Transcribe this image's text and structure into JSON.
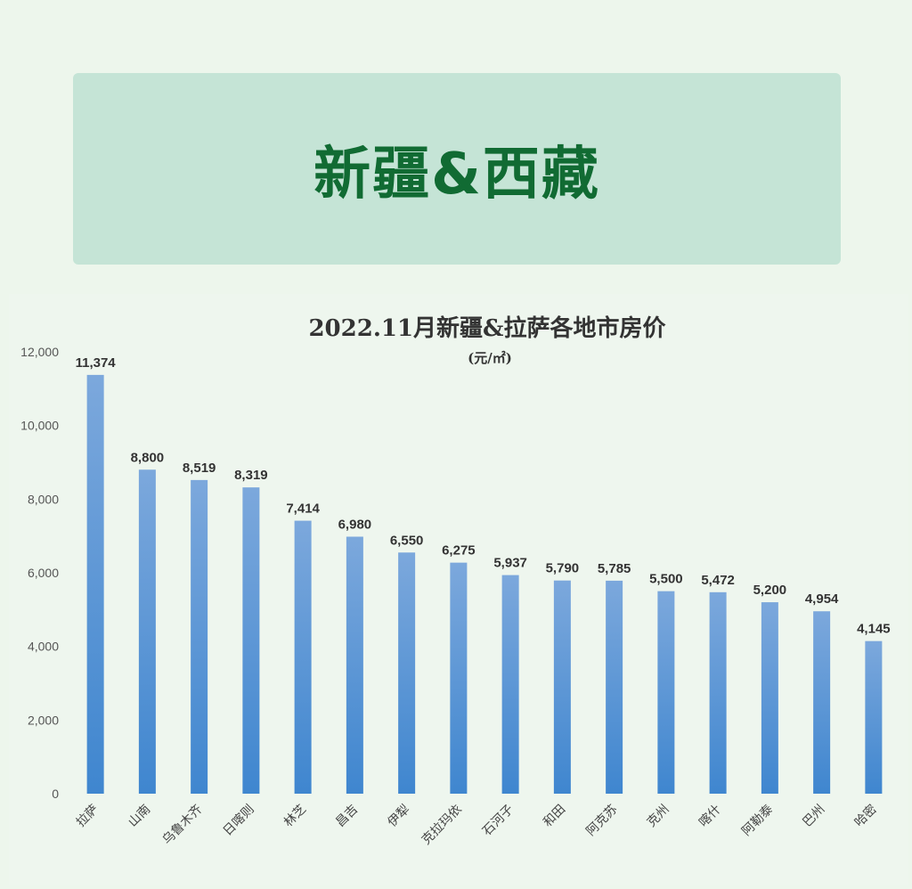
{
  "banner": {
    "title": "新疆&西藏"
  },
  "colors": {
    "page_bg": "#edf6ec",
    "banner_bg": "#c5e4d6",
    "banner_text": "#116b33",
    "bar_top": "#7ca8dc",
    "bar_bottom": "#3f86cf"
  },
  "chart_data": {
    "type": "bar",
    "title": "2022.11月新疆&拉萨各地市房价",
    "subtitle": "(元/㎡)",
    "categories": [
      "拉萨",
      "山南",
      "乌鲁木齐",
      "日喀则",
      "林芝",
      "昌吉",
      "伊犁",
      "克拉玛依",
      "石河子",
      "和田",
      "阿克苏",
      "克州",
      "喀什",
      "阿勒泰",
      "巴州",
      "哈密"
    ],
    "values": [
      11374,
      8800,
      8519,
      8319,
      7414,
      6980,
      6550,
      6275,
      5937,
      5790,
      5785,
      5500,
      5472,
      5200,
      4954,
      4145
    ],
    "value_labels": [
      "11,374",
      "8,800",
      "8,519",
      "8,319",
      "7,414",
      "6,980",
      "6,550",
      "6,275",
      "5,937",
      "5,790",
      "5,785",
      "5,500",
      "5,472",
      "5,200",
      "4,954",
      "4,145"
    ],
    "ylim": [
      0,
      12000
    ],
    "yticks": [
      0,
      2000,
      4000,
      6000,
      8000,
      10000,
      12000
    ],
    "ytick_labels": [
      "0",
      "2,000",
      "4,000",
      "6,000",
      "8,000",
      "10,000",
      "12,000"
    ],
    "xlabel": "",
    "ylabel": "",
    "grid": false,
    "legend": "none"
  }
}
